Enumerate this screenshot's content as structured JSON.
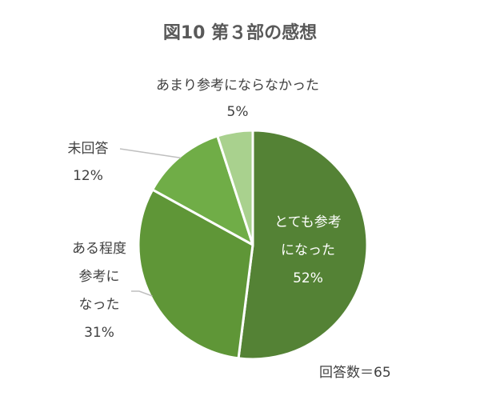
{
  "chart_data": {
    "type": "pie",
    "title": "図10 第３部の感想",
    "slices": [
      {
        "label_lines": [
          "とても参考",
          "になった"
        ],
        "percent_label": "52%",
        "value": 52,
        "color": "#548235"
      },
      {
        "label_lines": [
          "ある程度",
          "参考に",
          "なった"
        ],
        "percent_label": "31%",
        "value": 31,
        "color": "#5f9637"
      },
      {
        "label_lines": [
          "未回答"
        ],
        "percent_label": "12%",
        "value": 12,
        "color": "#70ad47"
      },
      {
        "label_lines": [
          "あまり参考にならなかった"
        ],
        "percent_label": "5%",
        "value": 5,
        "color": "#a9d18e"
      }
    ],
    "note": "回答数＝65"
  }
}
